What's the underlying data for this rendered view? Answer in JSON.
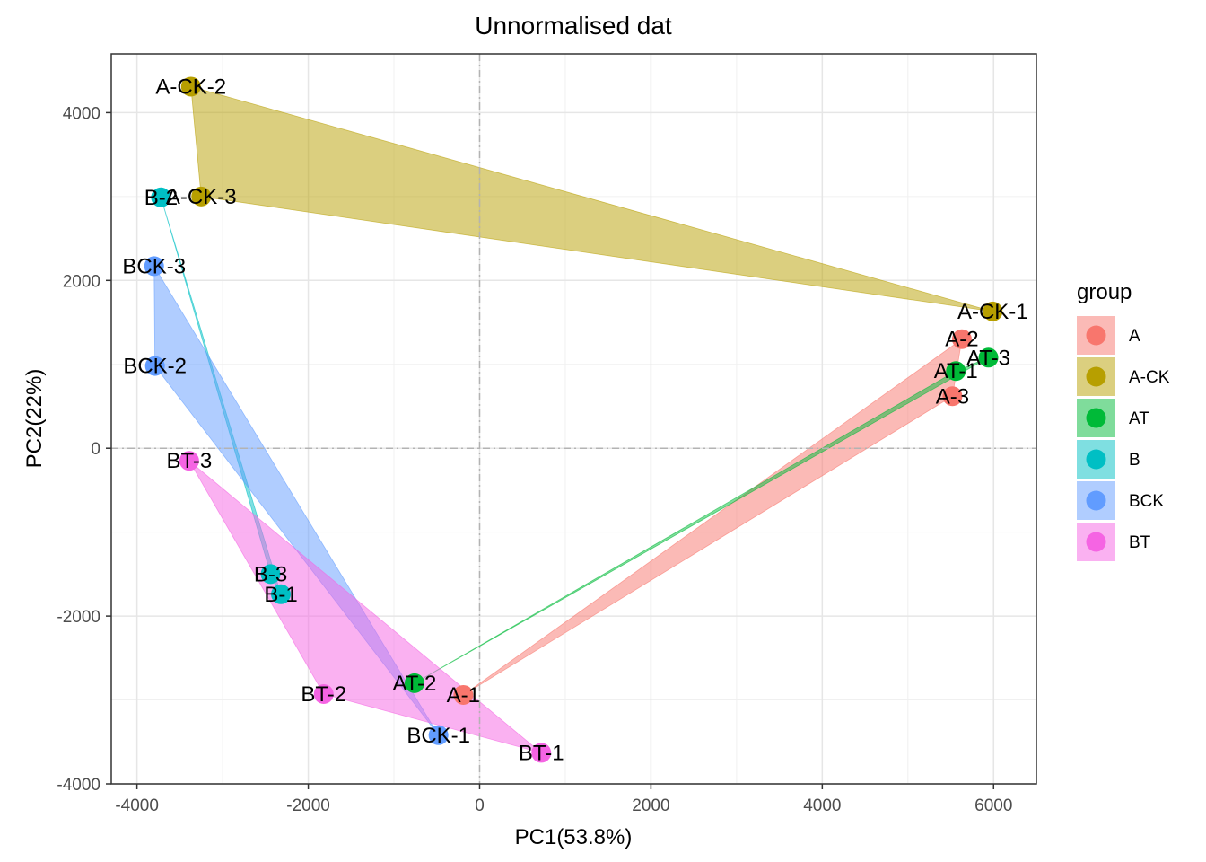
{
  "chart_data": {
    "type": "scatter",
    "title": "Unnormalised dat",
    "xlabel": "PC1(53.8%)",
    "ylabel": "PC2(22%)",
    "xlim": [
      -4300,
      6500
    ],
    "ylim": [
      -4000,
      4700
    ],
    "x_ticks": [
      -4000,
      -2000,
      0,
      2000,
      4000,
      6000
    ],
    "y_ticks": [
      -4000,
      -2000,
      0,
      2000,
      4000
    ],
    "grid": true,
    "reference_lines": {
      "x": 0,
      "y": 0
    },
    "legend": {
      "title": "group",
      "placement": "right"
    },
    "series": [
      {
        "name": "A",
        "color": "#F8766D",
        "points": [
          {
            "label": "A-1",
            "x": -190,
            "y": -2940
          },
          {
            "label": "A-2",
            "x": 5630,
            "y": 1300
          },
          {
            "label": "A-3",
            "x": 5520,
            "y": 620
          }
        ]
      },
      {
        "name": "A-CK",
        "color": "#B79F00",
        "points": [
          {
            "label": "A-CK-1",
            "x": 5990,
            "y": 1630
          },
          {
            "label": "A-CK-2",
            "x": -3370,
            "y": 4310
          },
          {
            "label": "A-CK-3",
            "x": -3250,
            "y": 3000
          }
        ]
      },
      {
        "name": "AT",
        "color": "#00BA38",
        "points": [
          {
            "label": "AT-1",
            "x": 5560,
            "y": 920
          },
          {
            "label": "AT-2",
            "x": -760,
            "y": -2800
          },
          {
            "label": "AT-3",
            "x": 5940,
            "y": 1080
          }
        ]
      },
      {
        "name": "B",
        "color": "#00BFC4",
        "points": [
          {
            "label": "B-1",
            "x": -2320,
            "y": -1740
          },
          {
            "label": "B-2",
            "x": -3720,
            "y": 2990
          },
          {
            "label": "B-3",
            "x": -2440,
            "y": -1500
          }
        ]
      },
      {
        "name": "BCK",
        "color": "#619CFF",
        "points": [
          {
            "label": "BCK-1",
            "x": -480,
            "y": -3420
          },
          {
            "label": "BCK-2",
            "x": -3790,
            "y": 980
          },
          {
            "label": "BCK-3",
            "x": -3800,
            "y": 2170
          }
        ]
      },
      {
        "name": "BT",
        "color": "#F564E3",
        "points": [
          {
            "label": "BT-1",
            "x": 720,
            "y": -3630
          },
          {
            "label": "BT-2",
            "x": -1820,
            "y": -2930
          },
          {
            "label": "BT-3",
            "x": -3390,
            "y": -150
          }
        ]
      }
    ]
  }
}
